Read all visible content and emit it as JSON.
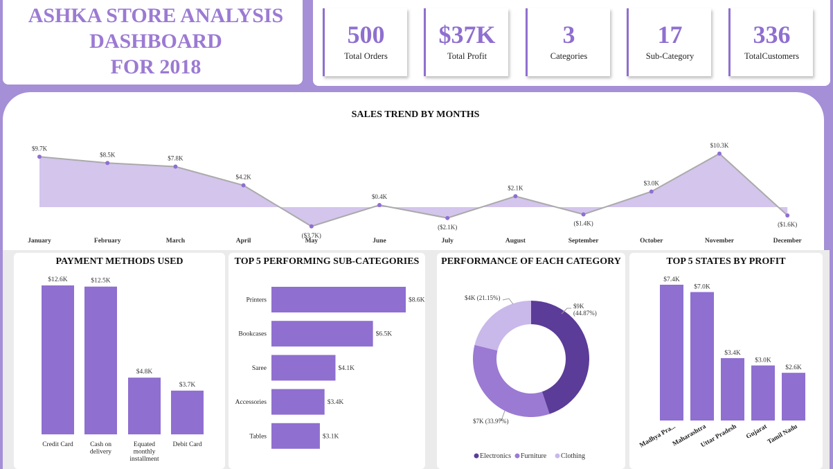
{
  "header": {
    "title_lines": [
      "ASHKA STORE ANALYSIS",
      "DASHBOARD",
      "FOR 2018"
    ]
  },
  "kpis": [
    {
      "value": "500",
      "label": "Total Orders"
    },
    {
      "value": "$37K",
      "label": "Total Profit"
    },
    {
      "value": "3",
      "label": "Categories"
    },
    {
      "value": "17",
      "label": "Sub-Category"
    },
    {
      "value": "336",
      "label": "TotalCustomers"
    }
  ],
  "colors": {
    "accent": "#9b7ad3",
    "bar": "#8f6fd0",
    "area": "#d3c5ec",
    "line": "#aaaaaa",
    "electronics": "#5b3c98",
    "furniture": "#9b7ad3",
    "clothing": "#c9b8ea"
  },
  "chart_data": [
    {
      "id": "sales_trend",
      "type": "area",
      "title": "SALES TREND BY MONTHS",
      "categories": [
        "January",
        "February",
        "March",
        "April",
        "May",
        "June",
        "July",
        "August",
        "September",
        "October",
        "November",
        "December"
      ],
      "values": [
        9.7,
        8.5,
        7.8,
        4.2,
        -3.7,
        0.4,
        -2.1,
        2.1,
        -1.4,
        3.0,
        10.3,
        -1.6
      ],
      "labels": [
        "$9.7K",
        "$8.5K",
        "$7.8K",
        "$4.2K",
        "($3.7K)",
        "$0.4K",
        "($2.1K)",
        "$2.1K",
        "($1.4K)",
        "$3.0K",
        "$10.3K",
        "($1.6K)"
      ],
      "unit": "thousand $",
      "ylim": [
        -4.5,
        11
      ]
    },
    {
      "id": "payment_methods",
      "type": "bar",
      "title": "PAYMENT METHODS USED",
      "categories": [
        "Credit Card",
        "Cash on delivery",
        "Equated monthly installment",
        "Debit Card"
      ],
      "category_lines": [
        [
          "Credit Card"
        ],
        [
          "Cash on",
          "delivery"
        ],
        [
          "Equated",
          "monthly",
          "installment"
        ],
        [
          "Debit Card"
        ]
      ],
      "values": [
        12.6,
        12.5,
        4.8,
        3.7
      ],
      "labels": [
        "$12.6K",
        "$12.5K",
        "$4.8K",
        "$3.7K"
      ],
      "ylim": [
        0,
        12.6
      ]
    },
    {
      "id": "top_subcategories",
      "type": "bar",
      "orientation": "horizontal",
      "title": "TOP 5 PERFORMING SUB-CATEGORIES",
      "categories": [
        "Printers",
        "Bookcases",
        "Saree",
        "Accessories",
        "Tables"
      ],
      "values": [
        8.6,
        6.5,
        4.1,
        3.4,
        3.1
      ],
      "labels": [
        "$8.6K",
        "$6.5K",
        "$4.1K",
        "$3.4K",
        "$3.1K"
      ],
      "xlim": [
        0,
        8.6
      ]
    },
    {
      "id": "category_performance",
      "type": "pie",
      "donut": true,
      "title": "PERFORMANCE OF EACH CATEGORY",
      "categories": [
        "Electronics",
        "Furniture",
        "Clothing"
      ],
      "values": [
        44.87,
        33.97,
        21.15
      ],
      "labels": [
        [
          "$9K",
          "(44.87%)"
        ],
        [
          "$7K (33.97%)"
        ],
        [
          "$4K (21.15%)"
        ]
      ],
      "legend": "bottom"
    },
    {
      "id": "top_states",
      "type": "bar",
      "title": "TOP 5 STATES BY PROFIT",
      "categories": [
        "Madhya Pra...",
        "Maharashtra",
        "Uttar Pradesh",
        "Gujarat",
        "Tamil Nadu"
      ],
      "values": [
        7.4,
        7.0,
        3.4,
        3.0,
        2.6
      ],
      "labels": [
        "$7.4K",
        "$7.0K",
        "$3.4K",
        "$3.0K",
        "$2.6K"
      ],
      "ylim": [
        0,
        7.4
      ]
    }
  ]
}
